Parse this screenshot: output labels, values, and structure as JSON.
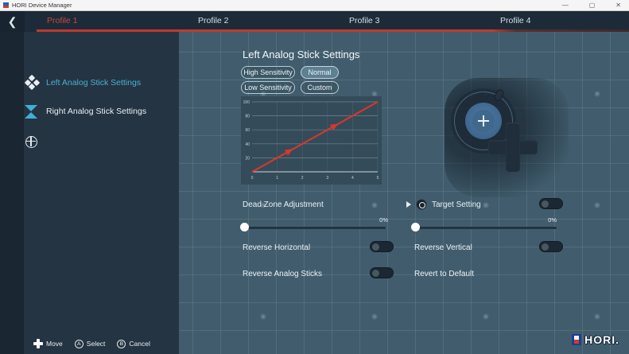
{
  "window": {
    "title": "HORI Device Manager",
    "controls": {
      "minimize": "—",
      "maximize": "▢",
      "close": "✕"
    },
    "back_glyph": "❮"
  },
  "tabs": [
    {
      "label": "Profile 1",
      "active": true
    },
    {
      "label": "Profile 2",
      "active": false
    },
    {
      "label": "Profile 3",
      "active": false
    },
    {
      "label": "Profile 4",
      "active": false
    }
  ],
  "sidebar": {
    "rail_icons": [
      {
        "name": "dpad-icon",
        "active": false
      },
      {
        "name": "analog-stick-icon",
        "active": true
      },
      {
        "name": "gyro-globe-icon",
        "active": false
      }
    ],
    "items": [
      {
        "label": "Left Analog Stick Settings",
        "active": true
      },
      {
        "label": "Right Analog Stick Settings",
        "active": false
      }
    ]
  },
  "main": {
    "title": "Left Analog Stick Settings",
    "sensitivity_options": [
      {
        "label": "High Sensitivity",
        "selected": false
      },
      {
        "label": "Normal",
        "selected": true
      },
      {
        "label": "Low Sensitivity",
        "selected": false
      },
      {
        "label": "Custom",
        "selected": false
      }
    ],
    "dead_zone": {
      "label": "Dead Zone Adjustment",
      "value_label": "0%"
    },
    "target_setting": {
      "label": "Target Setting",
      "toggle_on": false,
      "value_label": "0%"
    },
    "toggles": {
      "reverse_horizontal": "Reverse Horizontal",
      "reverse_vertical": "Reverse Vertical",
      "reverse_analog_sticks": "Reverse Analog Sticks"
    },
    "revert_label": "Revert to Default",
    "toggle_states": {
      "reverse_horizontal": false,
      "reverse_vertical": false,
      "reverse_analog_sticks": false
    }
  },
  "chart_data": {
    "type": "line",
    "title": "",
    "xlabel": "",
    "ylabel": "",
    "x_ticks": [
      0,
      1,
      2,
      3,
      4,
      5
    ],
    "y_ticks": [
      0,
      20,
      40,
      60,
      80,
      100
    ],
    "x_max": 5,
    "y_max": 100,
    "grid": true,
    "bg": "#344c5a",
    "line_color": "#e0352a",
    "arrow_fractions": [
      0.3,
      0.66
    ],
    "series": [
      {
        "name": "sensitivity-curve",
        "points": [
          [
            0,
            0
          ],
          [
            5,
            100
          ]
        ]
      }
    ]
  },
  "footer": {
    "hints": [
      {
        "button": "dpad",
        "label": "Move"
      },
      {
        "button": "A",
        "label": "Select"
      },
      {
        "button": "B",
        "label": "Cancel"
      }
    ],
    "logo": "HORI."
  },
  "colors": {
    "accent_red": "#c0392f",
    "selected_cyan": "#45b1d3",
    "main_bg": "#415d6d",
    "sidebar_bg": "#253442",
    "tabbar_bg": "#1d2b39"
  }
}
